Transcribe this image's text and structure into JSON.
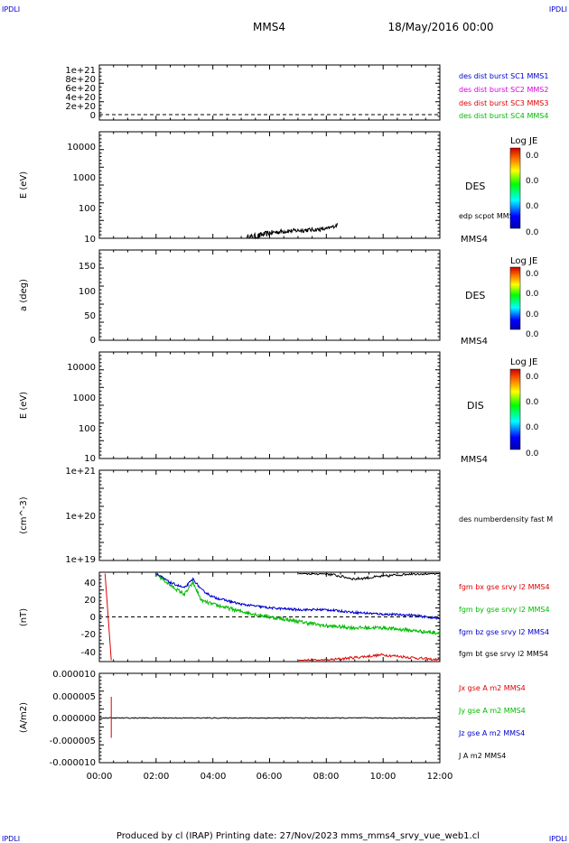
{
  "header": {
    "corner_left": "IPDLI",
    "corner_right": "IPDLI",
    "title": "MMS4",
    "date": "18/May/2016 00:00"
  },
  "footer": {
    "text": "Produced by cl (IRAP)   Printing date: 27/Nov/2023   mms_mms4_srvy_vue_web1.cl",
    "corner_left": "IPDLI",
    "corner_right": "IPDLI"
  },
  "x_ticks": [
    "00:00",
    "02:00",
    "04:00",
    "06:00",
    "08:00",
    "10:00",
    "12:00"
  ],
  "colors": {
    "blue": "#0000cc",
    "magenta": "#dd00dd",
    "red": "#dd0000",
    "green": "#00bb00",
    "black": "#000000"
  },
  "panels": {
    "p1": {
      "yticks": [
        "1e+21",
        "8e+20",
        "6e+20",
        "4e+20",
        "2e+20",
        "0"
      ],
      "legend": [
        "des dist burst SC1 MMS1",
        "des dist burst SC2 MMS2",
        "des dist burst SC3 MMS3",
        "des dist burst SC4 MMS4"
      ]
    },
    "p2": {
      "ylabel": "E (eV)",
      "yticks": [
        "10000",
        "1000",
        "100",
        "10"
      ],
      "instrument": "DES",
      "side_label": "edp scpot MMS4",
      "sc_label": "MMS4",
      "colorbar": {
        "title": "Log JE",
        "ticks": [
          "0.0",
          "0.0",
          "0.0",
          "0.0"
        ]
      }
    },
    "p3": {
      "ylabel": "a (deg)",
      "yticks": [
        "150",
        "100",
        "50",
        "0"
      ],
      "instrument": "DES",
      "sc_label": "MMS4",
      "colorbar": {
        "title": "Log JE",
        "ticks": [
          "0.0",
          "0.0",
          "0.0",
          "0.0"
        ]
      }
    },
    "p4": {
      "ylabel": "E (eV)",
      "yticks": [
        "10000",
        "1000",
        "100",
        "10"
      ],
      "instrument": "DIS",
      "sc_label": "MMS4",
      "colorbar": {
        "title": "Log JE",
        "ticks": [
          "0.0",
          "0.0",
          "0.0",
          "0.0"
        ]
      }
    },
    "p5": {
      "ylabel": "(cm^-3)",
      "yticks": [
        "1e+21",
        "1e+20",
        "1e+19"
      ],
      "side_label": "des numberdensity fast M"
    },
    "p6": {
      "ylabel": "(nT)",
      "yticks": [
        "40",
        "20",
        "0",
        "-20",
        "-40"
      ],
      "legend": [
        "fgm bx gse srvy l2 MMS4",
        "fgm by gse srvy l2 MMS4",
        "fgm bz gse srvy l2 MMS4",
        "fgm bt gse srvy l2 MMS4"
      ]
    },
    "p7": {
      "ylabel": "(A/m2)",
      "yticks": [
        "0.000010",
        "0.000005",
        "0.000000",
        "-0.000005",
        "-0.000010"
      ],
      "legend": [
        "Jx gse A m2 MMS4",
        "Jy gse A m2 MMS4",
        "Jz gse A m2 MMS4",
        "J A m2 MMS4"
      ]
    }
  },
  "chart_data": {
    "type": "line",
    "x_range": [
      "00:00",
      "12:00"
    ],
    "scpot": {
      "x_hours": [
        5.2,
        5.6,
        6.0,
        6.5,
        7.0,
        7.5,
        8.0,
        8.3,
        8.4
      ],
      "y_eV": [
        10,
        12,
        15,
        17,
        18,
        19,
        20,
        25,
        28
      ]
    },
    "fgm": {
      "x_hours": [
        0.0,
        0.2,
        0.4,
        2.0,
        2.5,
        3.0,
        3.3,
        3.6,
        4.0,
        4.5,
        5.0,
        6.0,
        7.0,
        8.0,
        9.0,
        10.0,
        11.0,
        12.0
      ],
      "bx": [
        null,
        48,
        -48,
        null,
        null,
        null,
        null,
        null,
        null,
        null,
        null,
        null,
        -48,
        -48,
        -45,
        -42,
        -45,
        -48
      ],
      "by": [
        null,
        null,
        null,
        48,
        35,
        25,
        38,
        18,
        14,
        10,
        6,
        0,
        -5,
        -10,
        -12,
        -12,
        -15,
        -18
      ],
      "bz": [
        null,
        null,
        null,
        48,
        38,
        32,
        42,
        30,
        22,
        18,
        14,
        10,
        8,
        8,
        5,
        3,
        2,
        -2
      ],
      "bt": [
        null,
        null,
        null,
        null,
        null,
        null,
        null,
        null,
        null,
        null,
        null,
        null,
        48,
        48,
        42,
        45,
        48,
        48
      ]
    },
    "current": {
      "spike_x_hours": 0.42,
      "spike_range": [
        -4.5e-06,
        4.8e-06
      ],
      "baseline": 0.0
    }
  }
}
